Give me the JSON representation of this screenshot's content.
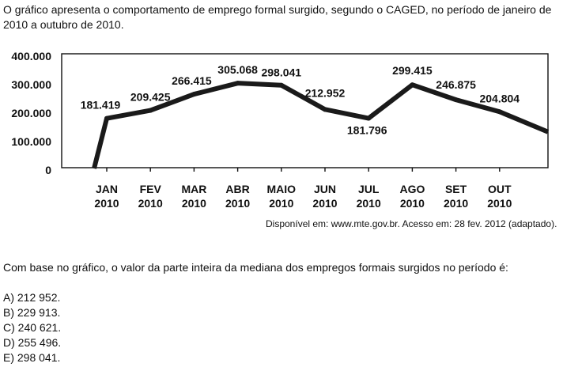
{
  "intro_text": "O gráfico apresenta o comportamento de emprego formal surgido, segundo o CAGED, no período de janeiro de 2010 a outubro de 2010.",
  "source_text": "Disponível em: www.mte.gov.br. Acesso em: 28 fev. 2012 (adaptado).",
  "question_text": "Com base no gráfico, o valor da parte inteira da mediana dos empregos formais surgidos no período é:",
  "options": [
    "A) 212 952.",
    "B) 229 913.",
    "C) 240 621.",
    "D) 255 496.",
    "E) 298 041."
  ],
  "chart_data": {
    "type": "line",
    "categories": [
      "JAN 2010",
      "FEV 2010",
      "MAR 2010",
      "ABR 2010",
      "MAIO 2010",
      "JUN 2010",
      "JUL 2010",
      "AGO 2010",
      "SET 2010",
      "OUT 2010"
    ],
    "category_lines": [
      [
        "JAN",
        "2010"
      ],
      [
        "FEV",
        "2010"
      ],
      [
        "MAR",
        "2010"
      ],
      [
        "ABR",
        "2010"
      ],
      [
        "MAIO",
        "2010"
      ],
      [
        "JUN",
        "2010"
      ],
      [
        "JUL",
        "2010"
      ],
      [
        "AGO",
        "2010"
      ],
      [
        "SET",
        "2010"
      ],
      [
        "OUT",
        "2010"
      ]
    ],
    "values": [
      181419,
      209425,
      266415,
      305068,
      298041,
      212952,
      181796,
      299415,
      246875,
      204804
    ],
    "data_labels": [
      "181.419",
      "209.425",
      "266.415",
      "305.068",
      "298.041",
      "212.952",
      "181.796",
      "299.415",
      "246.875",
      "204.804"
    ],
    "yticks": [
      0,
      100000,
      200000,
      300000,
      400000
    ],
    "ytick_labels": [
      "0",
      "100.000",
      "200.000",
      "300.000",
      "400.000"
    ],
    "ylim": [
      0,
      400000
    ],
    "title": "",
    "xlabel": "",
    "ylabel": "",
    "grid": false,
    "line_color": "#1a1a1a"
  }
}
